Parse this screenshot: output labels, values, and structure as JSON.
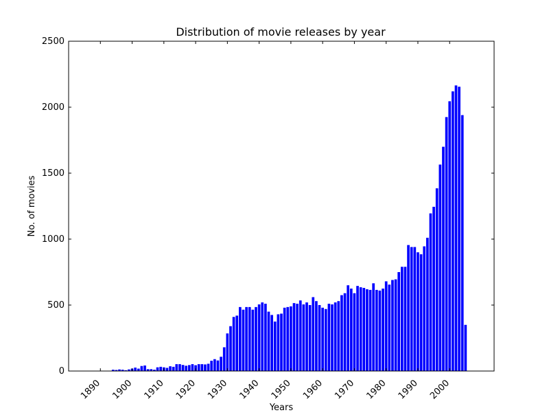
{
  "chart_data": {
    "type": "bar",
    "title": "Distribution of movie releases by year",
    "xlabel": "Years",
    "ylabel": "No. of movies",
    "xlim": [
      1880,
      2014
    ],
    "ylim": [
      0,
      2500
    ],
    "grid": false,
    "bar_color": "#0000ff",
    "x_ticks": [
      1890,
      1900,
      1910,
      1920,
      1930,
      1940,
      1950,
      1960,
      1970,
      1980,
      1990,
      2000
    ],
    "x_tick_labels": [
      "1890",
      "1900",
      "1910",
      "1920",
      "1930",
      "1940",
      "1950",
      "1960",
      "1970",
      "1980",
      "1990",
      "2000"
    ],
    "y_ticks": [
      0,
      500,
      1000,
      1500,
      2000,
      2500
    ],
    "y_tick_labels": [
      "0",
      "500",
      "1000",
      "1500",
      "2000",
      "2500"
    ],
    "x": [
      1894,
      1895,
      1896,
      1897,
      1898,
      1899,
      1900,
      1901,
      1902,
      1903,
      1904,
      1905,
      1906,
      1907,
      1908,
      1909,
      1910,
      1911,
      1912,
      1913,
      1914,
      1915,
      1916,
      1917,
      1918,
      1919,
      1920,
      1921,
      1922,
      1923,
      1924,
      1925,
      1926,
      1927,
      1928,
      1929,
      1930,
      1931,
      1932,
      1933,
      1934,
      1935,
      1936,
      1937,
      1938,
      1939,
      1940,
      1941,
      1942,
      1943,
      1944,
      1945,
      1946,
      1947,
      1948,
      1949,
      1950,
      1951,
      1952,
      1953,
      1954,
      1955,
      1956,
      1957,
      1958,
      1959,
      1960,
      1961,
      1962,
      1963,
      1964,
      1965,
      1966,
      1967,
      1968,
      1969,
      1970,
      1971,
      1972,
      1973,
      1974,
      1975,
      1976,
      1977,
      1978,
      1979,
      1980,
      1981,
      1982,
      1983,
      1984,
      1985,
      1986,
      1987,
      1988,
      1989,
      1990,
      1991,
      1992,
      1993,
      1994,
      1995,
      1996,
      1997,
      1998,
      1999,
      2000,
      2001,
      2002,
      2003,
      2004,
      2005
    ],
    "values": [
      10,
      8,
      12,
      10,
      6,
      12,
      18,
      26,
      18,
      38,
      42,
      14,
      14,
      10,
      28,
      32,
      28,
      24,
      36,
      32,
      52,
      52,
      46,
      40,
      45,
      52,
      44,
      52,
      52,
      50,
      55,
      78,
      90,
      80,
      108,
      180,
      285,
      340,
      410,
      420,
      485,
      465,
      485,
      485,
      465,
      485,
      505,
      520,
      510,
      450,
      425,
      375,
      430,
      435,
      480,
      485,
      490,
      515,
      510,
      535,
      505,
      520,
      500,
      560,
      530,
      500,
      480,
      470,
      510,
      505,
      520,
      530,
      575,
      590,
      650,
      625,
      590,
      645,
      635,
      630,
      620,
      615,
      665,
      615,
      610,
      625,
      680,
      655,
      690,
      695,
      750,
      790,
      790,
      955,
      940,
      940,
      900,
      885,
      945,
      1010,
      1195,
      1245,
      1385,
      1565,
      1700,
      1925,
      2045,
      2120,
      2165,
      2155,
      1940,
      350
    ]
  }
}
